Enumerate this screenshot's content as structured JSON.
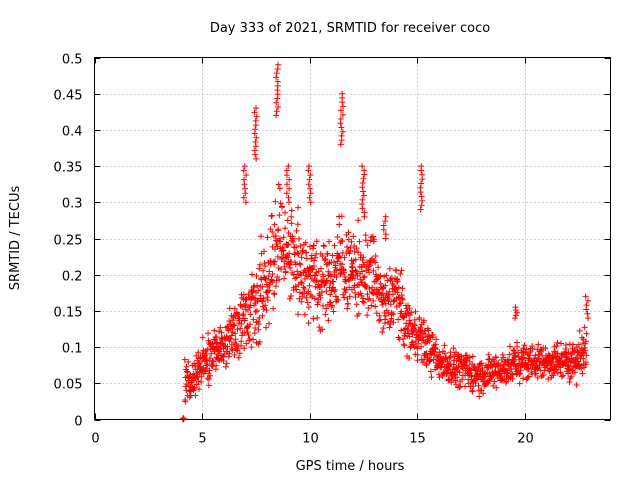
{
  "chart_data": {
    "type": "scatter",
    "title": "Day 333 of 2021, SRMTID for receiver coco",
    "xlabel": "GPS time / hours",
    "ylabel": "SRMTID / TECUs",
    "xlim": [
      0,
      24
    ],
    "ylim": [
      0,
      0.5
    ],
    "xticks": [
      0,
      5,
      10,
      15,
      20
    ],
    "yticks": [
      0,
      0.05,
      0.1,
      0.15,
      0.2,
      0.25,
      0.3,
      0.35,
      0.4,
      0.45,
      0.5
    ],
    "xtick_labels": [
      "0",
      "5",
      "10",
      "15",
      "20"
    ],
    "ytick_labels": [
      "0",
      "0.05",
      "0.1",
      "0.15",
      "0.2",
      "0.25",
      "0.3",
      "0.35",
      "0.4",
      "0.45",
      "0.5"
    ],
    "grid": true,
    "marker": "+",
    "color": "#ff0000",
    "profile": [
      [
        4.1,
        0.0,
        0.0
      ],
      [
        4.2,
        0.06,
        0.04
      ],
      [
        4.5,
        0.05,
        0.03
      ],
      [
        5.0,
        0.07,
        0.04
      ],
      [
        5.5,
        0.09,
        0.04
      ],
      [
        6.0,
        0.1,
        0.04
      ],
      [
        6.5,
        0.13,
        0.05
      ],
      [
        7.0,
        0.14,
        0.06
      ],
      [
        7.5,
        0.16,
        0.07
      ],
      [
        8.0,
        0.19,
        0.08
      ],
      [
        8.5,
        0.25,
        0.08
      ],
      [
        9.0,
        0.23,
        0.08
      ],
      [
        9.5,
        0.21,
        0.08
      ],
      [
        10.0,
        0.2,
        0.08
      ],
      [
        10.5,
        0.19,
        0.07
      ],
      [
        11.0,
        0.19,
        0.07
      ],
      [
        11.5,
        0.22,
        0.08
      ],
      [
        12.0,
        0.2,
        0.07
      ],
      [
        12.5,
        0.2,
        0.07
      ],
      [
        13.0,
        0.2,
        0.07
      ],
      [
        13.5,
        0.15,
        0.06
      ],
      [
        14.0,
        0.18,
        0.06
      ],
      [
        14.5,
        0.13,
        0.05
      ],
      [
        15.0,
        0.12,
        0.04
      ],
      [
        15.5,
        0.1,
        0.04
      ],
      [
        16.0,
        0.08,
        0.03
      ],
      [
        17.0,
        0.07,
        0.03
      ],
      [
        18.0,
        0.06,
        0.03
      ],
      [
        19.0,
        0.07,
        0.03
      ],
      [
        20.0,
        0.08,
        0.03
      ],
      [
        21.0,
        0.08,
        0.03
      ],
      [
        22.0,
        0.08,
        0.03
      ],
      [
        22.8,
        0.09,
        0.04
      ]
    ],
    "spikes": [
      [
        7.0,
        0.3,
        0.35
      ],
      [
        7.5,
        0.36,
        0.43
      ],
      [
        8.5,
        0.42,
        0.49
      ],
      [
        9.0,
        0.3,
        0.35
      ],
      [
        10.0,
        0.3,
        0.35
      ],
      [
        11.5,
        0.38,
        0.45
      ],
      [
        12.0,
        0.2,
        0.22
      ],
      [
        12.5,
        0.28,
        0.35
      ],
      [
        13.5,
        0.25,
        0.28
      ],
      [
        15.2,
        0.29,
        0.35
      ],
      [
        19.6,
        0.14,
        0.155
      ],
      [
        22.9,
        0.14,
        0.17
      ]
    ],
    "approx_point_count": 1600
  }
}
